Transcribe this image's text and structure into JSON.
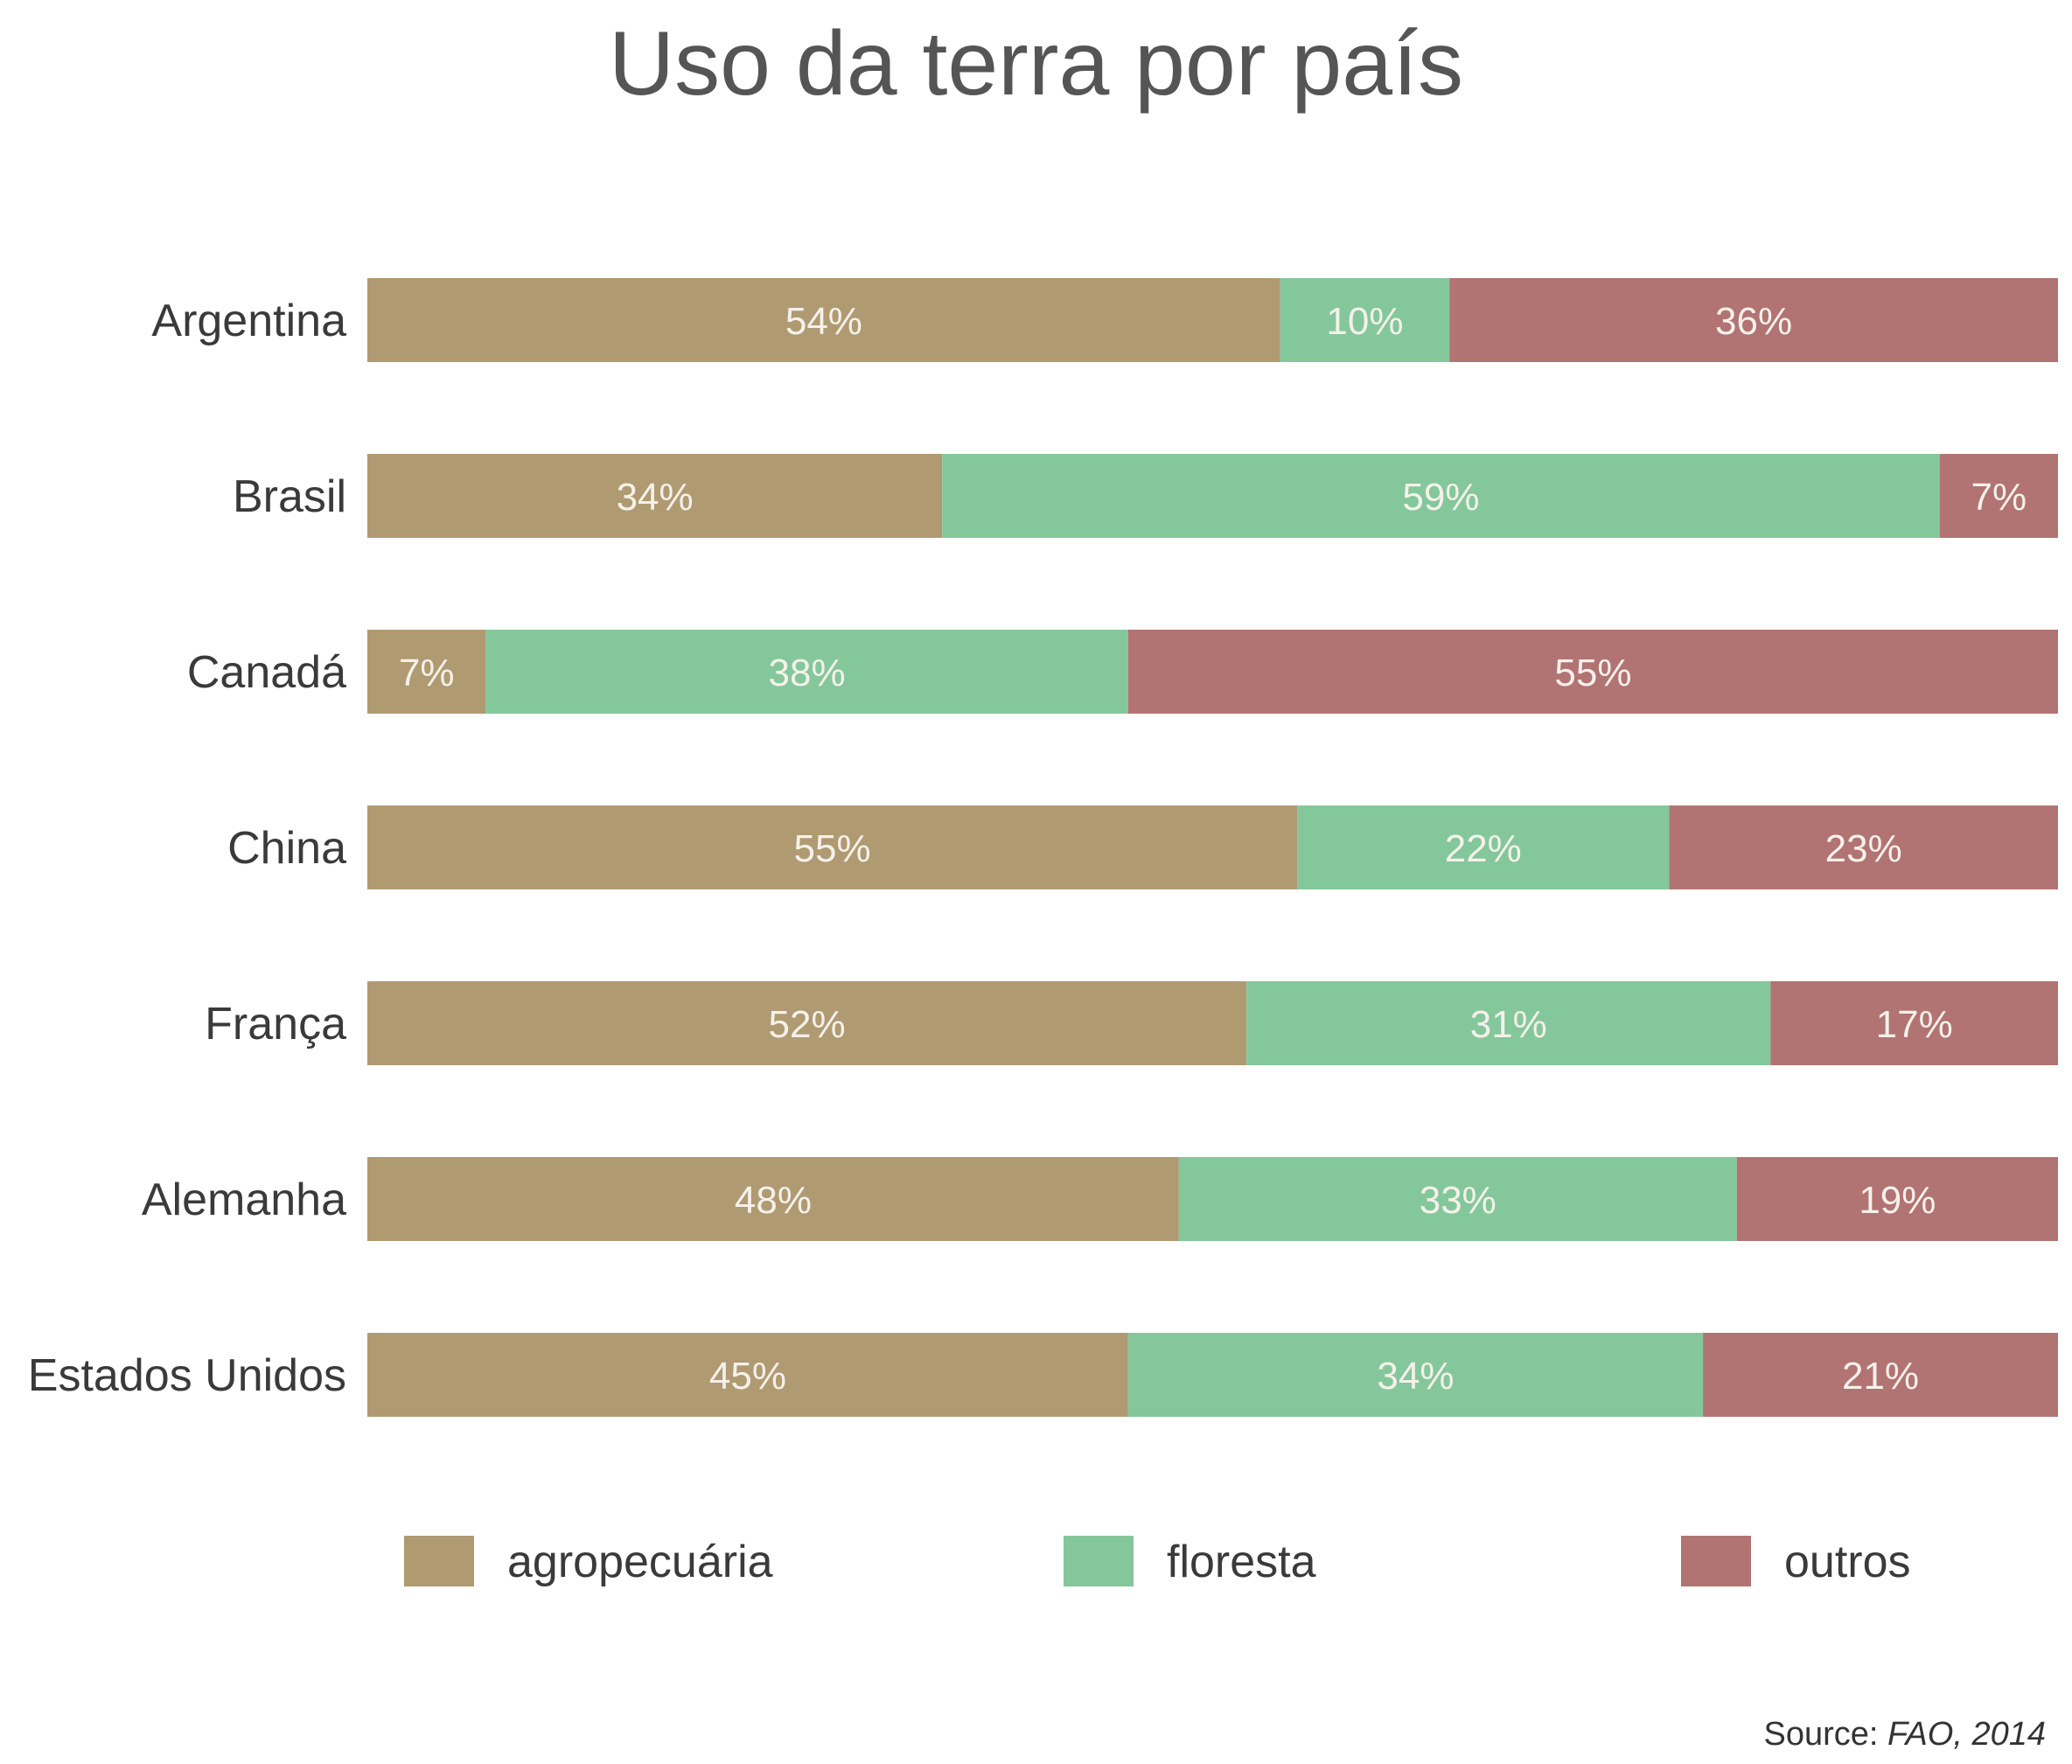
{
  "chart_data": {
    "type": "bar",
    "orientation": "horizontal",
    "stacked": true,
    "title": "Uso da terra por país",
    "categories": [
      "Argentina",
      "Brasil",
      "Canadá",
      "China",
      "França",
      "Alemanha",
      "Estados Unidos"
    ],
    "series": [
      {
        "name": "agropecuária",
        "color": "#b09a72",
        "values": [
          54,
          34,
          7,
          55,
          52,
          48,
          45
        ]
      },
      {
        "name": "floresta",
        "color": "#84c79b",
        "values": [
          10,
          59,
          38,
          22,
          31,
          33,
          34
        ]
      },
      {
        "name": "outros",
        "color": "#b27373",
        "values": [
          36,
          7,
          55,
          23,
          17,
          19,
          21
        ]
      }
    ],
    "value_suffix": "%",
    "xlim": [
      0,
      100
    ],
    "grid": false,
    "legend_position": "bottom"
  },
  "source": {
    "label": "Source:",
    "value": "FAO, 2014"
  }
}
